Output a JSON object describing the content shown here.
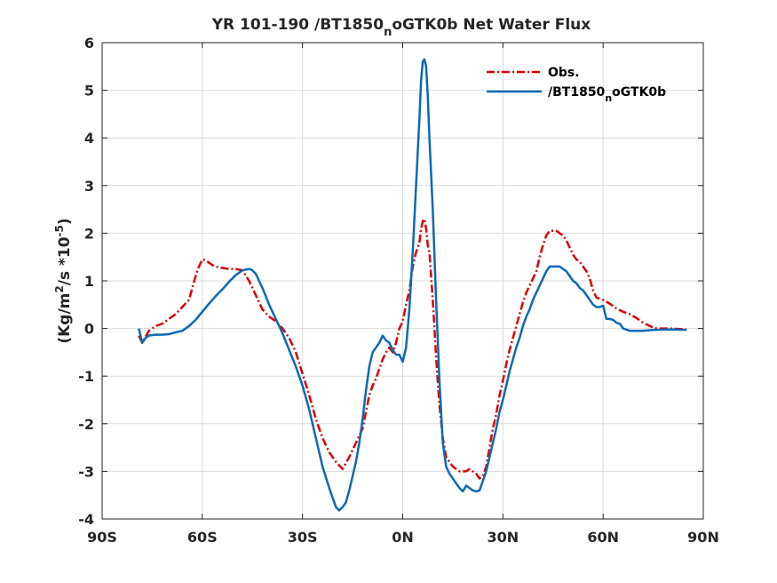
{
  "chart_data": {
    "type": "line",
    "title": "YR 101-190 /BT1850",
    "title_sub": "n",
    "title_tail": "oGTK0b  Net Water Flux",
    "ylabel_main": "(Kg/m",
    "ylabel_sup1": "2",
    "ylabel_mid": "/s *10",
    "ylabel_sup2": "-5",
    "ylabel_end": ")",
    "xlim": [
      -90,
      90
    ],
    "ylim": [
      -4,
      6
    ],
    "grid": true,
    "legend_position": "top-right",
    "x_ticks": [
      {
        "value": -90,
        "label": "90S"
      },
      {
        "value": -60,
        "label": "60S"
      },
      {
        "value": -30,
        "label": "30S"
      },
      {
        "value": 0,
        "label": "0N"
      },
      {
        "value": 30,
        "label": "30N"
      },
      {
        "value": 60,
        "label": "60N"
      },
      {
        "value": 90,
        "label": "90N"
      }
    ],
    "y_ticks": [
      {
        "value": -4,
        "label": "-4"
      },
      {
        "value": -3,
        "label": "-3"
      },
      {
        "value": -2,
        "label": "-2"
      },
      {
        "value": -1,
        "label": "-1"
      },
      {
        "value": 0,
        "label": "0"
      },
      {
        "value": 1,
        "label": "1"
      },
      {
        "value": 2,
        "label": "2"
      },
      {
        "value": 3,
        "label": "3"
      },
      {
        "value": 4,
        "label": "4"
      },
      {
        "value": 5,
        "label": "5"
      },
      {
        "value": 6,
        "label": "6"
      }
    ],
    "series": [
      {
        "name": "Obs.",
        "color": "#dd0000",
        "dash": "dash-dot",
        "points": [
          [
            -79,
            -0.15
          ],
          [
            -78,
            -0.3
          ],
          [
            -76,
            -0.05
          ],
          [
            -74,
            0.05
          ],
          [
            -72,
            0.1
          ],
          [
            -70,
            0.2
          ],
          [
            -68,
            0.3
          ],
          [
            -66,
            0.45
          ],
          [
            -64,
            0.6
          ],
          [
            -62,
            1.1
          ],
          [
            -61,
            1.3
          ],
          [
            -60,
            1.45
          ],
          [
            -59,
            1.43
          ],
          [
            -57,
            1.33
          ],
          [
            -55,
            1.28
          ],
          [
            -52,
            1.25
          ],
          [
            -50,
            1.25
          ],
          [
            -48,
            1.22
          ],
          [
            -46,
            1.0
          ],
          [
            -44,
            0.7
          ],
          [
            -42,
            0.4
          ],
          [
            -40,
            0.25
          ],
          [
            -38,
            0.15
          ],
          [
            -36,
            0.0
          ],
          [
            -34,
            -0.2
          ],
          [
            -32,
            -0.5
          ],
          [
            -30,
            -0.95
          ],
          [
            -28,
            -1.4
          ],
          [
            -26,
            -1.9
          ],
          [
            -24,
            -2.3
          ],
          [
            -22,
            -2.6
          ],
          [
            -20,
            -2.8
          ],
          [
            -18,
            -2.95
          ],
          [
            -16,
            -2.7
          ],
          [
            -14,
            -2.4
          ],
          [
            -12,
            -2.1
          ],
          [
            -11,
            -1.75
          ],
          [
            -10,
            -1.4
          ],
          [
            -9,
            -1.2
          ],
          [
            -8,
            -1.05
          ],
          [
            -7,
            -0.85
          ],
          [
            -6,
            -0.65
          ],
          [
            -5,
            -0.5
          ],
          [
            -4,
            -0.4
          ],
          [
            -3,
            -0.5
          ],
          [
            -2,
            -0.3
          ],
          [
            -1,
            0.0
          ],
          [
            0,
            0.15
          ],
          [
            1,
            0.5
          ],
          [
            2,
            0.8
          ],
          [
            3,
            1.3
          ],
          [
            4,
            1.6
          ],
          [
            5,
            1.8
          ],
          [
            5.5,
            2.1
          ],
          [
            6,
            2.25
          ],
          [
            6.5,
            2.3
          ],
          [
            7,
            2.1
          ],
          [
            7.5,
            1.75
          ],
          [
            8,
            1.6
          ],
          [
            9,
            0.6
          ],
          [
            10,
            -0.6
          ],
          [
            11,
            -1.6
          ],
          [
            12,
            -2.3
          ],
          [
            13,
            -2.7
          ],
          [
            14,
            -2.8
          ],
          [
            15,
            -2.9
          ],
          [
            17,
            -3.0
          ],
          [
            19,
            -3.0
          ],
          [
            20,
            -2.95
          ],
          [
            21,
            -3.0
          ],
          [
            22,
            -3.05
          ],
          [
            23,
            -3.15
          ],
          [
            24,
            -3.1
          ],
          [
            25,
            -2.9
          ],
          [
            26,
            -2.5
          ],
          [
            27,
            -2.1
          ],
          [
            28,
            -1.8
          ],
          [
            29,
            -1.4
          ],
          [
            30,
            -1.1
          ],
          [
            31,
            -0.75
          ],
          [
            32,
            -0.45
          ],
          [
            33,
            -0.2
          ],
          [
            34,
            0.05
          ],
          [
            35,
            0.3
          ],
          [
            36,
            0.55
          ],
          [
            37,
            0.75
          ],
          [
            38,
            0.9
          ],
          [
            39,
            1.05
          ],
          [
            40,
            1.2
          ],
          [
            41,
            1.5
          ],
          [
            42,
            1.75
          ],
          [
            43,
            1.95
          ],
          [
            44,
            2.05
          ],
          [
            45,
            2.05
          ],
          [
            46,
            2.05
          ],
          [
            47,
            2.0
          ],
          [
            48,
            1.95
          ],
          [
            49,
            1.85
          ],
          [
            50,
            1.7
          ],
          [
            51,
            1.55
          ],
          [
            52,
            1.45
          ],
          [
            53,
            1.4
          ],
          [
            54,
            1.3
          ],
          [
            55,
            1.2
          ],
          [
            56,
            1.05
          ],
          [
            57,
            0.8
          ],
          [
            58,
            0.65
          ],
          [
            60,
            0.6
          ],
          [
            62,
            0.52
          ],
          [
            64,
            0.42
          ],
          [
            66,
            0.35
          ],
          [
            68,
            0.3
          ],
          [
            70,
            0.22
          ],
          [
            72,
            0.12
          ],
          [
            74,
            0.05
          ],
          [
            76,
            0.0
          ],
          [
            80,
            0.0
          ],
          [
            85,
            -0.02
          ]
        ]
      },
      {
        "name": "/BT1850",
        "name_sub": "n",
        "name_tail": "oGTK0b",
        "color": "#0a6ab4",
        "dash": "solid",
        "points": [
          [
            -79,
            0.0
          ],
          [
            -78,
            -0.3
          ],
          [
            -77,
            -0.2
          ],
          [
            -76,
            -0.15
          ],
          [
            -74,
            -0.13
          ],
          [
            -72,
            -0.13
          ],
          [
            -70,
            -0.12
          ],
          [
            -68,
            -0.08
          ],
          [
            -66,
            -0.05
          ],
          [
            -64,
            0.05
          ],
          [
            -62,
            0.18
          ],
          [
            -60,
            0.35
          ],
          [
            -58,
            0.52
          ],
          [
            -56,
            0.68
          ],
          [
            -54,
            0.82
          ],
          [
            -52,
            0.98
          ],
          [
            -50,
            1.12
          ],
          [
            -48,
            1.22
          ],
          [
            -46,
            1.25
          ],
          [
            -45,
            1.22
          ],
          [
            -44,
            1.15
          ],
          [
            -43,
            1.0
          ],
          [
            -42,
            0.85
          ],
          [
            -41,
            0.68
          ],
          [
            -40,
            0.5
          ],
          [
            -38,
            0.2
          ],
          [
            -36,
            -0.1
          ],
          [
            -34,
            -0.45
          ],
          [
            -32,
            -0.8
          ],
          [
            -30,
            -1.2
          ],
          [
            -28,
            -1.7
          ],
          [
            -26,
            -2.3
          ],
          [
            -24,
            -2.9
          ],
          [
            -22,
            -3.35
          ],
          [
            -21,
            -3.55
          ],
          [
            -20,
            -3.75
          ],
          [
            -19,
            -3.82
          ],
          [
            -18,
            -3.75
          ],
          [
            -17,
            -3.65
          ],
          [
            -16,
            -3.4
          ],
          [
            -15,
            -3.1
          ],
          [
            -14,
            -2.8
          ],
          [
            -13,
            -2.4
          ],
          [
            -12,
            -1.9
          ],
          [
            -11,
            -1.3
          ],
          [
            -10,
            -0.8
          ],
          [
            -9,
            -0.5
          ],
          [
            -8,
            -0.4
          ],
          [
            -7,
            -0.3
          ],
          [
            -6,
            -0.15
          ],
          [
            -5,
            -0.25
          ],
          [
            -4,
            -0.3
          ],
          [
            -3,
            -0.45
          ],
          [
            -2,
            -0.55
          ],
          [
            -1,
            -0.55
          ],
          [
            0,
            -0.7
          ],
          [
            1,
            -0.4
          ],
          [
            2,
            0.4
          ],
          [
            3,
            1.6
          ],
          [
            4,
            3.0
          ],
          [
            5,
            4.4
          ],
          [
            5.5,
            5.2
          ],
          [
            6,
            5.6
          ],
          [
            6.5,
            5.65
          ],
          [
            7,
            5.5
          ],
          [
            7.5,
            4.9
          ],
          [
            8,
            4.0
          ],
          [
            9,
            2.5
          ],
          [
            10,
            0.6
          ],
          [
            11,
            -1.1
          ],
          [
            12,
            -2.4
          ],
          [
            13,
            -2.9
          ],
          [
            14,
            -3.05
          ],
          [
            15,
            -3.15
          ],
          [
            16,
            -3.25
          ],
          [
            17,
            -3.35
          ],
          [
            18,
            -3.42
          ],
          [
            19,
            -3.3
          ],
          [
            20,
            -3.35
          ],
          [
            21,
            -3.4
          ],
          [
            22,
            -3.42
          ],
          [
            23,
            -3.4
          ],
          [
            24,
            -3.2
          ],
          [
            25,
            -3.0
          ],
          [
            26,
            -2.7
          ],
          [
            27,
            -2.4
          ],
          [
            28,
            -2.1
          ],
          [
            29,
            -1.75
          ],
          [
            30,
            -1.5
          ],
          [
            31,
            -1.2
          ],
          [
            32,
            -0.9
          ],
          [
            33,
            -0.65
          ],
          [
            34,
            -0.4
          ],
          [
            35,
            -0.2
          ],
          [
            36,
            0.05
          ],
          [
            37,
            0.25
          ],
          [
            38,
            0.4
          ],
          [
            39,
            0.6
          ],
          [
            40,
            0.75
          ],
          [
            41,
            0.9
          ],
          [
            42,
            1.05
          ],
          [
            43,
            1.2
          ],
          [
            44,
            1.3
          ],
          [
            45,
            1.3
          ],
          [
            46,
            1.3
          ],
          [
            47,
            1.3
          ],
          [
            48,
            1.25
          ],
          [
            49,
            1.2
          ],
          [
            50,
            1.1
          ],
          [
            51,
            1.0
          ],
          [
            52,
            0.95
          ],
          [
            53,
            0.85
          ],
          [
            54,
            0.8
          ],
          [
            55,
            0.7
          ],
          [
            56,
            0.6
          ],
          [
            57,
            0.5
          ],
          [
            58,
            0.45
          ],
          [
            59,
            0.45
          ],
          [
            60,
            0.48
          ],
          [
            61,
            0.2
          ],
          [
            62,
            0.2
          ],
          [
            63,
            0.18
          ],
          [
            64,
            0.12
          ],
          [
            65,
            0.1
          ],
          [
            66,
            0.0
          ],
          [
            68,
            -0.05
          ],
          [
            70,
            -0.05
          ],
          [
            72,
            -0.05
          ],
          [
            75,
            -0.03
          ],
          [
            80,
            -0.02
          ],
          [
            85,
            -0.03
          ]
        ]
      }
    ]
  }
}
